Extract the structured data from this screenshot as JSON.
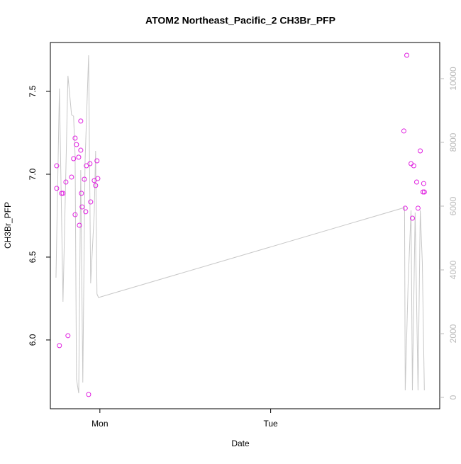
{
  "chart_data": {
    "type": "scatter",
    "title": "ATOM2 Northeast_Pacific_2 CH3Br_PFP",
    "x_label": "Date",
    "y_label": "CH3Br_PFP",
    "xlim": [
      0.71,
      2.99
    ],
    "xticks": [
      {
        "value": 1,
        "label": "Mon"
      },
      {
        "value": 2,
        "label": "Tue"
      }
    ],
    "ylim": [
      5.585,
      7.795
    ],
    "yticks": [
      {
        "value": 6,
        "label": "6.0"
      },
      6.5,
      {
        "value": 7,
        "label": "7.0"
      },
      7.5
    ],
    "y2lim": [
      -356,
      11133
    ],
    "y2ticks": [
      0,
      2000,
      4000,
      6000,
      8000,
      10000
    ],
    "y2_color": "#bbbbbb",
    "series": [
      {
        "color": "#e020e0",
        "marker": "circle",
        "x": [
          0.747,
          0.747,
          0.763,
          0.776,
          0.784,
          0.801,
          0.813,
          0.834,
          0.846,
          0.855,
          0.855,
          0.863,
          0.876,
          0.88,
          0.888,
          0.888,
          0.892,
          0.896,
          0.909,
          0.917,
          0.921,
          0.934,
          0.942,
          0.946,
          0.967,
          0.975,
          0.983,
          0.988,
          2.78,
          2.788,
          2.797,
          2.822,
          2.83,
          2.838,
          2.855,
          2.863,
          2.876,
          2.892,
          2.896,
          2.9
        ],
        "values": [
          7.051,
          6.915,
          5.966,
          6.885,
          6.885,
          6.953,
          6.026,
          6.983,
          7.094,
          7.218,
          6.756,
          7.179,
          7.103,
          6.692,
          7.321,
          7.145,
          6.885,
          6.803,
          6.97,
          6.774,
          7.051,
          5.671,
          7.064,
          6.833,
          6.962,
          6.932,
          7.081,
          6.974,
          7.261,
          6.795,
          7.718,
          7.064,
          6.735,
          7.051,
          6.953,
          6.795,
          7.141,
          6.893,
          6.944,
          6.893
        ]
      },
      {
        "color": "#c8c8c8",
        "marker": "line",
        "axis": "y2",
        "x": [
          0.743,
          0.763,
          0.784,
          0.813,
          0.834,
          0.846,
          0.855,
          0.863,
          0.876,
          0.888,
          0.9,
          0.913,
          0.934,
          0.946,
          0.967,
          0.975,
          0.983,
          0.992,
          2.784,
          2.788,
          2.805,
          2.822,
          2.83,
          2.846,
          2.863,
          2.876,
          2.888,
          2.9
        ],
        "values": [
          3756,
          9689,
          3000,
          10089,
          8867,
          8822,
          7578,
          578,
          133,
          7133,
          467,
          7356,
          10733,
          3578,
          5800,
          7733,
          3244,
          3133,
          5956,
          222,
          3578,
          5867,
          222,
          5800,
          222,
          5867,
          4244,
          222
        ]
      }
    ]
  }
}
